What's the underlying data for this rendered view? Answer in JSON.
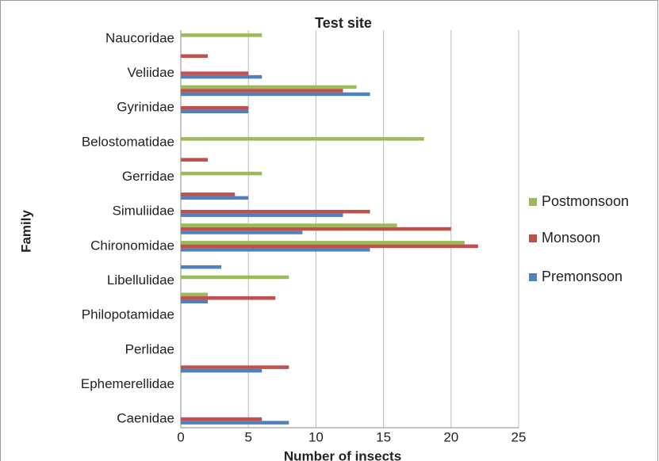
{
  "chart_data": {
    "type": "bar",
    "orientation": "horizontal",
    "title": "Test site",
    "x_label": "Number of insects",
    "y_label": "Family",
    "categories": [
      "Caenidae",
      null,
      "Ephemerellidae",
      null,
      "Perlidae",
      null,
      "Philopotamidae",
      null,
      "Libellulidae",
      null,
      "Chironomidae",
      null,
      "Simuliidae",
      null,
      "Gerridae",
      null,
      "Belostomatidae",
      null,
      "Gyrinidae",
      null,
      "Veliidae",
      null,
      "Naucoridae"
    ],
    "series": [
      {
        "name": "Premonsoon",
        "color": "#4f81bd",
        "values": [
          8,
          0,
          0,
          6,
          0,
          0,
          0,
          2,
          0,
          3,
          14,
          9,
          12,
          5,
          0,
          0,
          0,
          0,
          5,
          14,
          6,
          0,
          0
        ]
      },
      {
        "name": "Monsoon",
        "color": "#c0504d",
        "values": [
          6,
          0,
          0,
          8,
          0,
          0,
          0,
          7,
          0,
          0,
          22,
          20,
          14,
          4,
          0,
          2,
          0,
          0,
          5,
          12,
          5,
          2,
          0
        ]
      },
      {
        "name": "Postmonsoon",
        "color": "#9bbb59",
        "values": [
          0,
          0,
          0,
          0,
          0,
          0,
          0,
          2,
          8,
          0,
          21,
          16,
          0,
          0,
          6,
          0,
          18,
          0,
          0,
          13,
          0,
          0,
          6
        ]
      }
    ],
    "xlim": [
      0,
      25
    ],
    "xticks": [
      0,
      5,
      10,
      15,
      20,
      25
    ],
    "grid": true,
    "legend": "right"
  }
}
